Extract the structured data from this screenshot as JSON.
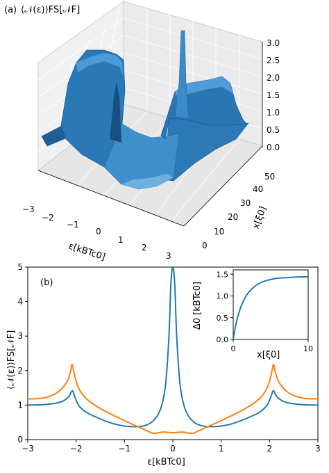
{
  "panel_a": {
    "label": "(a)",
    "ylabel": "⟨𝒩(ε)⟩FS[𝒩F]",
    "eps_label": "ε[kBTc0]",
    "x_label": "x[ξ0]",
    "z_ticks": [
      "3.0",
      "2.5",
      "2.0",
      "1.5",
      "1.0",
      "0.5",
      "0.0"
    ],
    "eps_ticks": [
      "−3",
      "−2",
      "−1",
      "0",
      "1",
      "2",
      "3"
    ],
    "x_ticks": [
      "50",
      "40",
      "30",
      "20",
      "10",
      "0"
    ],
    "surface_color": "#2f7fc1"
  },
  "chart_data": [
    {
      "type": "line",
      "panel": "(b)",
      "xlabel": "ε[kBTc0]",
      "ylabel": "⟨𝒩(ε)⟩FS[𝒩F]",
      "xlim": [
        -3,
        3
      ],
      "ylim": [
        0,
        5
      ],
      "xticks": [
        "−3",
        "−2",
        "−1",
        "0",
        "1",
        "2",
        "3"
      ],
      "yticks": [
        "0",
        "1",
        "2",
        "3",
        "4",
        "5"
      ],
      "series": [
        {
          "color": "#1f77b4",
          "x": [
            -3.0,
            -2.6,
            -2.3,
            -2.15,
            -2.08,
            -2.03,
            -1.95,
            -1.8,
            -1.5,
            -1.2,
            -0.9,
            -0.6,
            -0.4,
            -0.25,
            -0.15,
            -0.08,
            -0.04,
            0.0,
            0.04,
            0.08,
            0.15,
            0.25,
            0.4,
            0.6,
            0.9,
            1.2,
            1.5,
            1.8,
            1.95,
            2.03,
            2.08,
            2.15,
            2.3,
            2.6,
            3.0
          ],
          "y": [
            1.0,
            1.02,
            1.1,
            1.25,
            1.42,
            1.25,
            1.0,
            0.8,
            0.6,
            0.45,
            0.38,
            0.4,
            0.55,
            0.9,
            1.6,
            3.0,
            4.5,
            5.0,
            4.5,
            3.0,
            1.6,
            0.9,
            0.55,
            0.4,
            0.38,
            0.45,
            0.6,
            0.8,
            1.0,
            1.25,
            1.42,
            1.25,
            1.1,
            1.02,
            1.0
          ]
        },
        {
          "color": "#ff7f0e",
          "x": [
            -3.0,
            -2.7,
            -2.4,
            -2.2,
            -2.12,
            -2.08,
            -2.03,
            -1.95,
            -1.8,
            -1.5,
            -1.0,
            -0.6,
            -0.4,
            -0.2,
            0.0,
            0.2,
            0.4,
            0.6,
            1.0,
            1.5,
            1.8,
            1.95,
            2.03,
            2.08,
            2.12,
            2.2,
            2.4,
            2.7,
            3.0
          ],
          "y": [
            1.18,
            1.2,
            1.35,
            1.65,
            1.95,
            2.18,
            1.85,
            1.5,
            1.2,
            0.9,
            0.55,
            0.3,
            0.18,
            0.22,
            0.2,
            0.22,
            0.18,
            0.3,
            0.55,
            0.9,
            1.2,
            1.5,
            1.85,
            2.18,
            1.95,
            1.65,
            1.35,
            1.2,
            1.18
          ]
        }
      ]
    },
    {
      "type": "line",
      "panel": "inset",
      "xlabel": "x[ξ0]",
      "ylabel": "Δ0 [kBTc0]",
      "xlim": [
        0,
        10
      ],
      "ylim": [
        0,
        1.6
      ],
      "xticks": [
        "0",
        "10"
      ],
      "yticks": [
        "0.0",
        "0.5",
        "1.0",
        "1.5"
      ],
      "series": [
        {
          "color": "#1f77b4",
          "x": [
            0,
            0.25,
            0.5,
            1,
            1.5,
            2,
            3,
            4,
            5,
            6,
            7,
            8,
            9,
            10
          ],
          "y": [
            0.0,
            0.25,
            0.45,
            0.74,
            0.93,
            1.07,
            1.24,
            1.33,
            1.38,
            1.41,
            1.42,
            1.43,
            1.44,
            1.44
          ]
        }
      ]
    }
  ]
}
